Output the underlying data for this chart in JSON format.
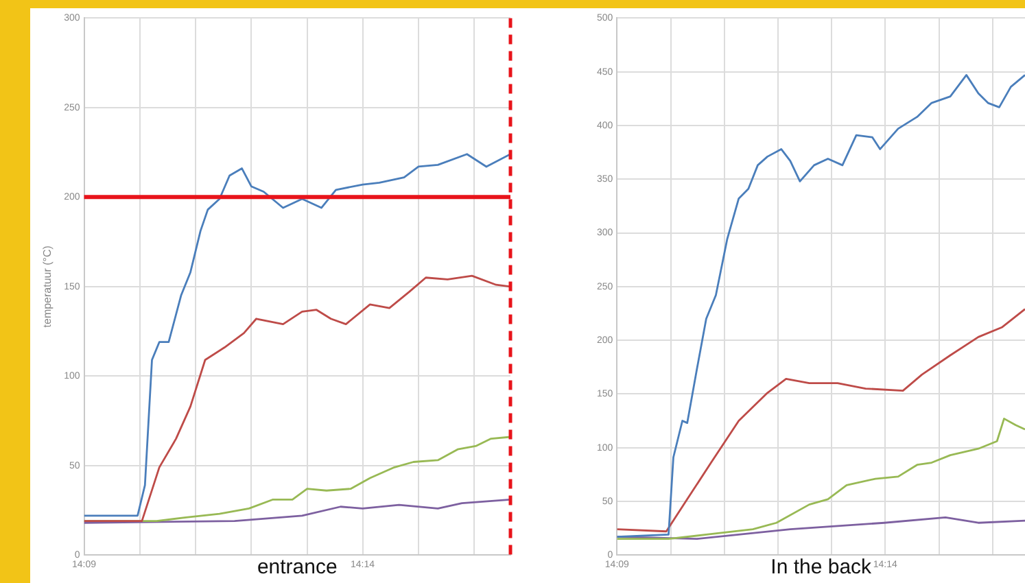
{
  "chart_data": [
    {
      "type": "line",
      "xlabel": "entrance",
      "ylabel": "temperatuur (°C)",
      "xlim": [
        14.15,
        14.2775
      ],
      "ylim": [
        0,
        300
      ],
      "xticks": [
        {
          "value": 14.15,
          "label": "14:09"
        },
        {
          "value": 14.1667,
          "label": null
        },
        {
          "value": 14.1833,
          "label": null
        },
        {
          "value": 14.2,
          "label": null
        },
        {
          "value": 14.2167,
          "label": null
        },
        {
          "value": 14.2333,
          "label": "14:14"
        },
        {
          "value": 14.25,
          "label": null
        },
        {
          "value": 14.2667,
          "label": null
        }
      ],
      "yticks": [
        0,
        50,
        100,
        150,
        200,
        250,
        300
      ],
      "grid": true,
      "ref_lines": [
        {
          "axis": "y",
          "value": 200,
          "color": "#e8141b",
          "line_style": "solid"
        },
        {
          "axis": "x",
          "value": 14.2775,
          "color": "#e8141b",
          "line_style": "dashed"
        }
      ],
      "series": [
        {
          "color": "#4a7ebb",
          "x": [
            14.15,
            14.166,
            14.1682,
            14.1703,
            14.1725,
            14.1753,
            14.179,
            14.1818,
            14.1848,
            14.187,
            14.1905,
            14.1935,
            14.1972,
            14.2,
            14.2037,
            14.2095,
            14.2152,
            14.221,
            14.2253,
            14.2333,
            14.2383,
            14.2457,
            14.25,
            14.2558,
            14.2645,
            14.2703,
            14.2775
          ],
          "values": [
            22,
            22,
            39,
            109,
            119,
            119,
            145,
            158,
            181,
            193,
            199,
            212,
            216,
            206,
            203,
            194,
            199,
            194,
            204,
            207,
            208,
            211,
            217,
            218,
            224,
            217,
            224
          ]
        },
        {
          "color": "#be4b48",
          "x": [
            14.15,
            14.1673,
            14.1725,
            14.1775,
            14.1818,
            14.1862,
            14.192,
            14.1978,
            14.2015,
            14.2095,
            14.2152,
            14.2195,
            14.2238,
            14.2283,
            14.2355,
            14.2413,
            14.2472,
            14.2522,
            14.2587,
            14.266,
            14.2732,
            14.2775
          ],
          "values": [
            19,
            19,
            49,
            65,
            83,
            109,
            116,
            124,
            132,
            129,
            136,
            137,
            132,
            129,
            140,
            138,
            147,
            155,
            154,
            156,
            151,
            150
          ]
        },
        {
          "color": "#98b954",
          "x": [
            14.15,
            14.1717,
            14.1805,
            14.1905,
            14.1993,
            14.2065,
            14.2123,
            14.2167,
            14.2225,
            14.2297,
            14.2355,
            14.2428,
            14.2485,
            14.2558,
            14.2617,
            14.2673,
            14.2717,
            14.2775
          ],
          "values": [
            19,
            19,
            21,
            23,
            26,
            31,
            31,
            37,
            36,
            37,
            43,
            49,
            52,
            53,
            59,
            61,
            65,
            66
          ]
        },
        {
          "color": "#7d60a0",
          "x": [
            14.15,
            14.195,
            14.2152,
            14.2267,
            14.2333,
            14.2442,
            14.2558,
            14.263,
            14.2775
          ],
          "values": [
            18,
            19,
            22,
            27,
            26,
            28,
            26,
            29,
            31
          ]
        }
      ]
    },
    {
      "type": "line",
      "xlabel": "In the back",
      "xlim": [
        14.15,
        14.2767
      ],
      "ylim": [
        0,
        500
      ],
      "xticks": [
        {
          "value": 14.15,
          "label": "14:09"
        },
        {
          "value": 14.1667,
          "label": null
        },
        {
          "value": 14.1833,
          "label": null
        },
        {
          "value": 14.2,
          "label": null
        },
        {
          "value": 14.2167,
          "label": null
        },
        {
          "value": 14.2333,
          "label": "14:14"
        },
        {
          "value": 14.25,
          "label": null
        },
        {
          "value": 14.2667,
          "label": null
        }
      ],
      "yticks": [
        0,
        50,
        100,
        150,
        200,
        250,
        300,
        350,
        400,
        450,
        500
      ],
      "grid": true,
      "series": [
        {
          "color": "#4a7ebb",
          "x": [
            14.15,
            14.166,
            14.1675,
            14.1703,
            14.1718,
            14.1748,
            14.1777,
            14.1807,
            14.1842,
            14.1878,
            14.1908,
            14.1937,
            14.1967,
            14.201,
            14.2038,
            14.2068,
            14.2112,
            14.2155,
            14.22,
            14.2243,
            14.2293,
            14.2317,
            14.2373,
            14.2432,
            14.2477,
            14.2535,
            14.2585,
            14.2622,
            14.2652,
            14.2687,
            14.2723,
            14.2767
          ],
          "values": [
            17,
            19,
            91,
            125,
            123,
            173,
            220,
            242,
            294,
            332,
            341,
            363,
            371,
            378,
            367,
            348,
            363,
            369,
            363,
            391,
            389,
            378,
            397,
            408,
            421,
            427,
            447,
            430,
            421,
            417,
            436,
            447
          ]
        },
        {
          "color": "#be4b48",
          "x": [
            14.15,
            14.1653,
            14.1718,
            14.1792,
            14.1878,
            14.1967,
            14.2025,
            14.2097,
            14.2185,
            14.2272,
            14.2388,
            14.2447,
            14.2535,
            14.2622,
            14.2695,
            14.2767
          ],
          "values": [
            24,
            22,
            52,
            86,
            125,
            151,
            164,
            160,
            160,
            155,
            153,
            168,
            186,
            203,
            212,
            229
          ]
        },
        {
          "color": "#98b954",
          "x": [
            14.15,
            14.166,
            14.1777,
            14.1922,
            14.1995,
            14.2097,
            14.2155,
            14.2213,
            14.2302,
            14.2373,
            14.2432,
            14.2477,
            14.2535,
            14.2622,
            14.268,
            14.2702,
            14.2738,
            14.2767
          ],
          "values": [
            15,
            15,
            19,
            24,
            30,
            47,
            52,
            65,
            71,
            73,
            84,
            86,
            93,
            99,
            106,
            127,
            121,
            117
          ]
        },
        {
          "color": "#7d60a0",
          "x": [
            14.15,
            14.1748,
            14.2038,
            14.233,
            14.252,
            14.2622,
            14.2767
          ],
          "values": [
            17,
            15,
            24,
            30,
            35,
            30,
            32
          ]
        }
      ]
    }
  ]
}
